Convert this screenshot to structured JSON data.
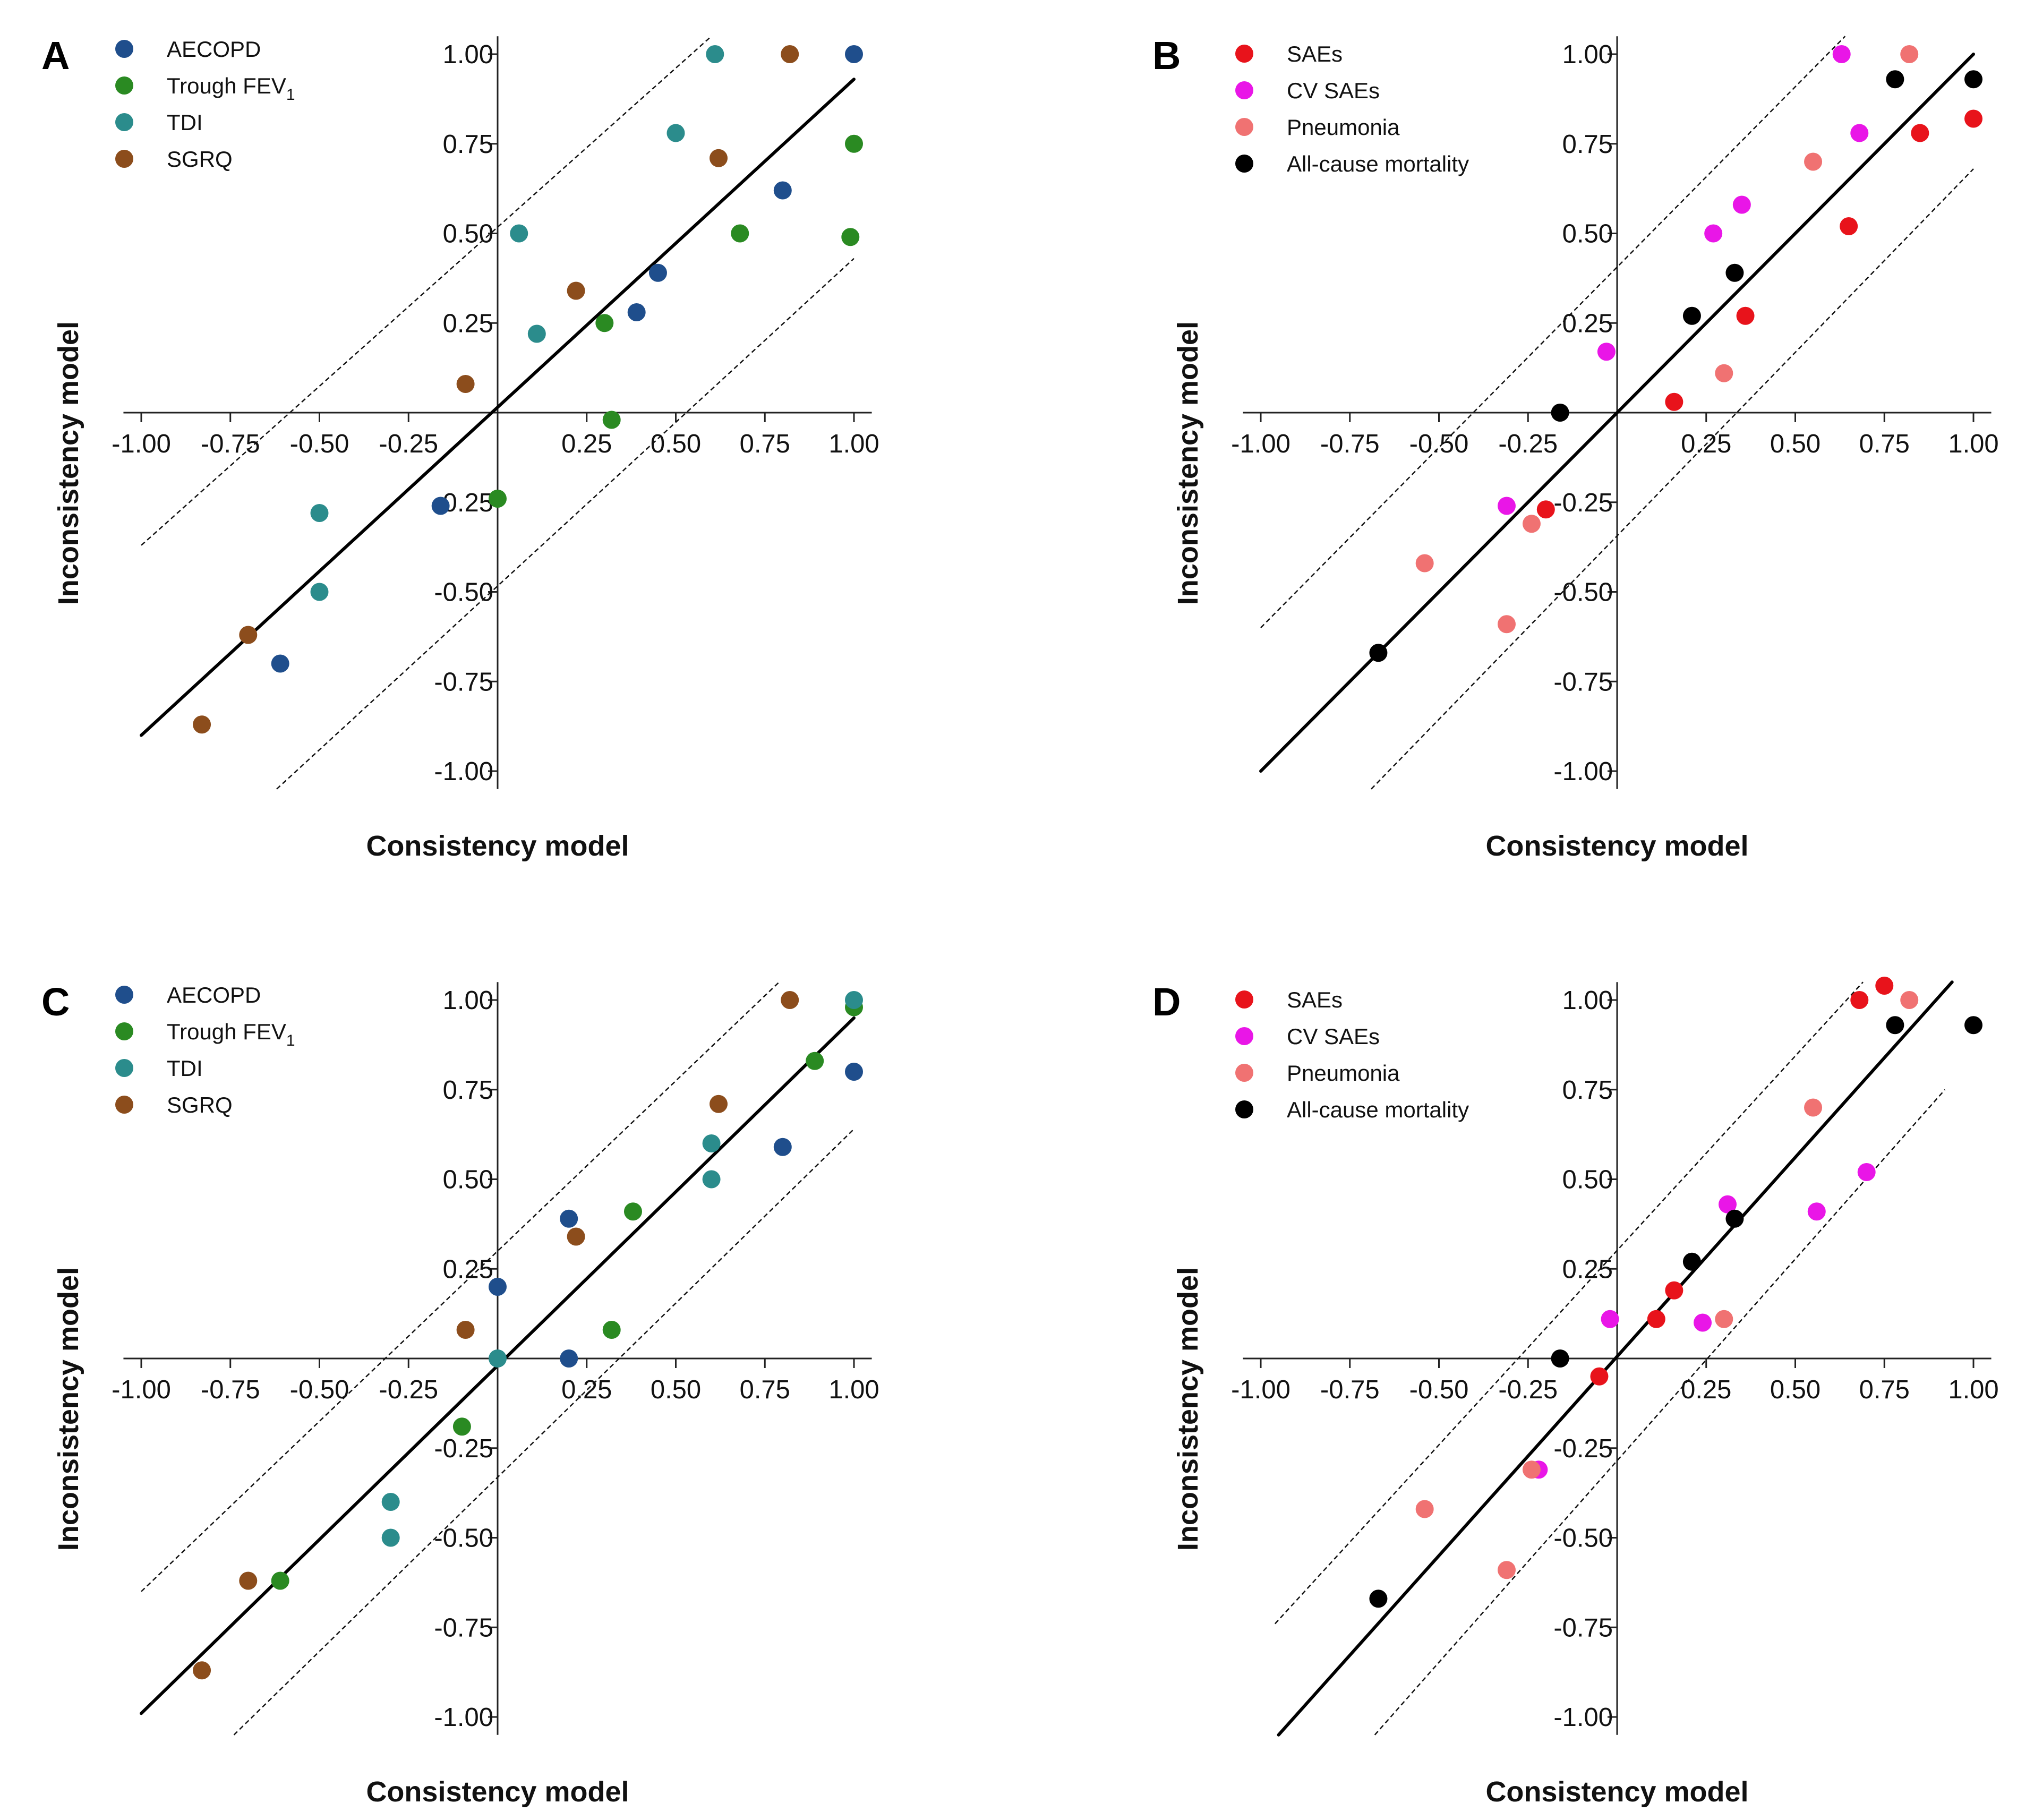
{
  "chart_data": [
    {
      "type": "scatter",
      "panel": "A",
      "xlabel": "Consistency model",
      "ylabel": "Inconsistency model",
      "xlim": [
        -1.05,
        1.05
      ],
      "ylim": [
        -1.05,
        1.05
      ],
      "x_ticks": [
        "-1.00",
        "-0.75",
        "-0.50",
        "-0.25",
        "0.25",
        "0.50",
        "0.75",
        "1.00"
      ],
      "y_ticks": [
        "1.00",
        "0.75",
        "0.50",
        "0.25",
        "-0.25",
        "-0.50",
        "-0.75",
        "-1.00"
      ],
      "legend": "top-left",
      "series": [
        {
          "name": "AECOPD",
          "color": "#1f4e8c",
          "points": [
            [
              1.0,
              1.0
            ],
            [
              0.8,
              0.62
            ],
            [
              0.45,
              0.39
            ],
            [
              0.39,
              0.28
            ],
            [
              -0.16,
              -0.26
            ],
            [
              -0.61,
              -0.7
            ]
          ]
        },
        {
          "name": "Trough FEV",
          "subscript": "1",
          "color": "#2a8a22",
          "points": [
            [
              1.0,
              0.75
            ],
            [
              0.68,
              0.5
            ],
            [
              0.99,
              0.49
            ],
            [
              0.3,
              0.25
            ],
            [
              0.32,
              -0.02
            ],
            [
              0.0,
              -0.24
            ]
          ]
        },
        {
          "name": "TDI",
          "color": "#2b8c8c",
          "points": [
            [
              0.61,
              1.0
            ],
            [
              0.5,
              0.78
            ],
            [
              0.06,
              0.5
            ],
            [
              0.11,
              0.22
            ],
            [
              -0.5,
              -0.28
            ],
            [
              -0.5,
              -0.5
            ]
          ]
        },
        {
          "name": "SGRQ",
          "color": "#8c4d1c",
          "points": [
            [
              0.82,
              1.0
            ],
            [
              0.62,
              0.71
            ],
            [
              0.22,
              0.34
            ],
            [
              -0.09,
              0.08
            ],
            [
              -0.7,
              -0.62
            ],
            [
              -0.83,
              -0.87
            ]
          ]
        }
      ],
      "lines": [
        [
          [
            -1.0,
            -0.9
          ],
          [
            1.0,
            0.93
          ]
        ]
      ],
      "dashed_lines": [
        [
          [
            -1.0,
            -0.37
          ],
          [
            0.6,
            1.05
          ]
        ],
        [
          [
            -0.62,
            -1.05
          ],
          [
            1.0,
            0.43
          ]
        ]
      ]
    },
    {
      "type": "scatter",
      "panel": "B",
      "xlabel": "Consistency model",
      "ylabel": "Inconsistency model",
      "xlim": [
        -1.05,
        1.05
      ],
      "ylim": [
        -1.05,
        1.05
      ],
      "x_ticks": [
        "-1.00",
        "-0.75",
        "-0.50",
        "-0.25",
        "0.25",
        "0.50",
        "0.75",
        "1.00"
      ],
      "y_ticks": [
        "1.00",
        "0.75",
        "0.50",
        "0.25",
        "-0.25",
        "-0.50",
        "-0.75",
        "-1.00"
      ],
      "legend": "top-left",
      "series": [
        {
          "name": "SAEs",
          "color": "#e8131b",
          "points": [
            [
              1.0,
              0.82
            ],
            [
              0.85,
              0.78
            ],
            [
              0.65,
              0.52
            ],
            [
              0.36,
              0.27
            ],
            [
              0.16,
              0.03
            ],
            [
              -0.2,
              -0.27
            ]
          ]
        },
        {
          "name": "CV SAEs",
          "color": "#e916e7",
          "points": [
            [
              0.63,
              1.0
            ],
            [
              0.68,
              0.78
            ],
            [
              0.35,
              0.58
            ],
            [
              0.27,
              0.5
            ],
            [
              -0.03,
              0.17
            ],
            [
              -0.31,
              -0.26
            ]
          ]
        },
        {
          "name": "Pneumonia",
          "color": "#f07272",
          "points": [
            [
              0.82,
              1.0
            ],
            [
              0.55,
              0.7
            ],
            [
              0.3,
              0.11
            ],
            [
              -0.24,
              -0.31
            ],
            [
              -0.54,
              -0.42
            ],
            [
              -0.31,
              -0.59
            ]
          ]
        },
        {
          "name": "All-cause mortality",
          "color": "#000000",
          "points": [
            [
              1.0,
              0.93
            ],
            [
              0.78,
              0.93
            ],
            [
              0.33,
              0.39
            ],
            [
              0.21,
              0.27
            ],
            [
              -0.16,
              0.0
            ],
            [
              -0.67,
              -0.67
            ]
          ]
        }
      ],
      "lines": [
        [
          [
            -1.0,
            -1.0
          ],
          [
            1.0,
            1.0
          ]
        ]
      ],
      "dashed_lines": [
        [
          [
            -1.0,
            -0.6
          ],
          [
            0.64,
            1.05
          ]
        ],
        [
          [
            -0.69,
            -1.05
          ],
          [
            1.0,
            0.68
          ]
        ]
      ]
    },
    {
      "type": "scatter",
      "panel": "C",
      "xlabel": "Consistency model",
      "ylabel": "Inconsistency model",
      "xlim": [
        -1.05,
        1.05
      ],
      "ylim": [
        -1.05,
        1.05
      ],
      "x_ticks": [
        "-1.00",
        "-0.75",
        "-0.50",
        "-0.25",
        "0.25",
        "0.50",
        "0.75",
        "1.00"
      ],
      "y_ticks": [
        "1.00",
        "0.75",
        "0.50",
        "0.25",
        "-0.25",
        "-0.50",
        "-0.75",
        "-1.00"
      ],
      "legend": "top-left",
      "series": [
        {
          "name": "AECOPD",
          "color": "#1f4e8c",
          "points": [
            [
              1.0,
              0.8
            ],
            [
              0.8,
              0.59
            ],
            [
              0.2,
              0.39
            ],
            [
              0.0,
              0.2
            ],
            [
              0.2,
              0.0
            ]
          ]
        },
        {
          "name": "Trough FEV",
          "subscript": "1",
          "color": "#2a8a22",
          "points": [
            [
              1.0,
              0.98
            ],
            [
              0.89,
              0.83
            ],
            [
              0.38,
              0.41
            ],
            [
              0.32,
              0.08
            ],
            [
              -0.1,
              -0.19
            ],
            [
              -0.61,
              -0.62
            ]
          ]
        },
        {
          "name": "TDI",
          "color": "#2b8c8c",
          "points": [
            [
              1.0,
              1.0
            ],
            [
              0.6,
              0.6
            ],
            [
              0.6,
              0.5
            ],
            [
              0.0,
              0.0
            ],
            [
              -0.3,
              -0.4
            ],
            [
              -0.3,
              -0.5
            ]
          ]
        },
        {
          "name": "SGRQ",
          "color": "#8c4d1c",
          "points": [
            [
              0.82,
              1.0
            ],
            [
              0.62,
              0.71
            ],
            [
              0.22,
              0.34
            ],
            [
              -0.09,
              0.08
            ],
            [
              -0.7,
              -0.62
            ],
            [
              -0.83,
              -0.87
            ]
          ]
        }
      ],
      "lines": [
        [
          [
            -1.0,
            -0.99
          ],
          [
            1.0,
            0.95
          ]
        ]
      ],
      "dashed_lines": [
        [
          [
            -1.0,
            -0.65
          ],
          [
            0.79,
            1.05
          ]
        ],
        [
          [
            -0.74,
            -1.05
          ],
          [
            1.0,
            0.64
          ]
        ]
      ]
    },
    {
      "type": "scatter",
      "panel": "D",
      "xlabel": "Consistency model",
      "ylabel": "Inconsistency model",
      "xlim": [
        -1.05,
        1.05
      ],
      "ylim": [
        -1.05,
        1.05
      ],
      "x_ticks": [
        "-1.00",
        "-0.75",
        "-0.50",
        "-0.25",
        "0.25",
        "0.50",
        "0.75",
        "1.00"
      ],
      "y_ticks": [
        "1.00",
        "0.75",
        "0.50",
        "0.25",
        "-0.25",
        "-0.50",
        "-0.75",
        "-1.00"
      ],
      "legend": "top-left",
      "series": [
        {
          "name": "SAEs",
          "color": "#e8131b",
          "points": [
            [
              0.75,
              1.04
            ],
            [
              0.68,
              1.0
            ],
            [
              0.16,
              0.19
            ],
            [
              0.11,
              0.11
            ],
            [
              -0.05,
              -0.05
            ]
          ]
        },
        {
          "name": "CV SAEs",
          "color": "#e916e7",
          "points": [
            [
              0.7,
              0.52
            ],
            [
              0.56,
              0.41
            ],
            [
              0.31,
              0.43
            ],
            [
              0.24,
              0.1
            ],
            [
              -0.02,
              0.11
            ],
            [
              -0.22,
              -0.31
            ]
          ]
        },
        {
          "name": "Pneumonia",
          "color": "#f07272",
          "points": [
            [
              0.82,
              1.0
            ],
            [
              0.55,
              0.7
            ],
            [
              0.3,
              0.11
            ],
            [
              -0.24,
              -0.31
            ],
            [
              -0.54,
              -0.42
            ],
            [
              -0.31,
              -0.59
            ]
          ]
        },
        {
          "name": "All-cause mortality",
          "color": "#000000",
          "points": [
            [
              1.0,
              0.93
            ],
            [
              0.78,
              0.93
            ],
            [
              0.33,
              0.39
            ],
            [
              0.21,
              0.27
            ],
            [
              -0.16,
              0.0
            ],
            [
              -0.67,
              -0.67
            ]
          ]
        }
      ],
      "lines": [
        [
          [
            -0.95,
            -1.05
          ],
          [
            0.94,
            1.05
          ]
        ]
      ],
      "dashed_lines": [
        [
          [
            -0.96,
            -0.74
          ],
          [
            0.69,
            1.05
          ]
        ],
        [
          [
            -0.68,
            -1.05
          ],
          [
            0.92,
            0.75
          ]
        ]
      ]
    }
  ]
}
